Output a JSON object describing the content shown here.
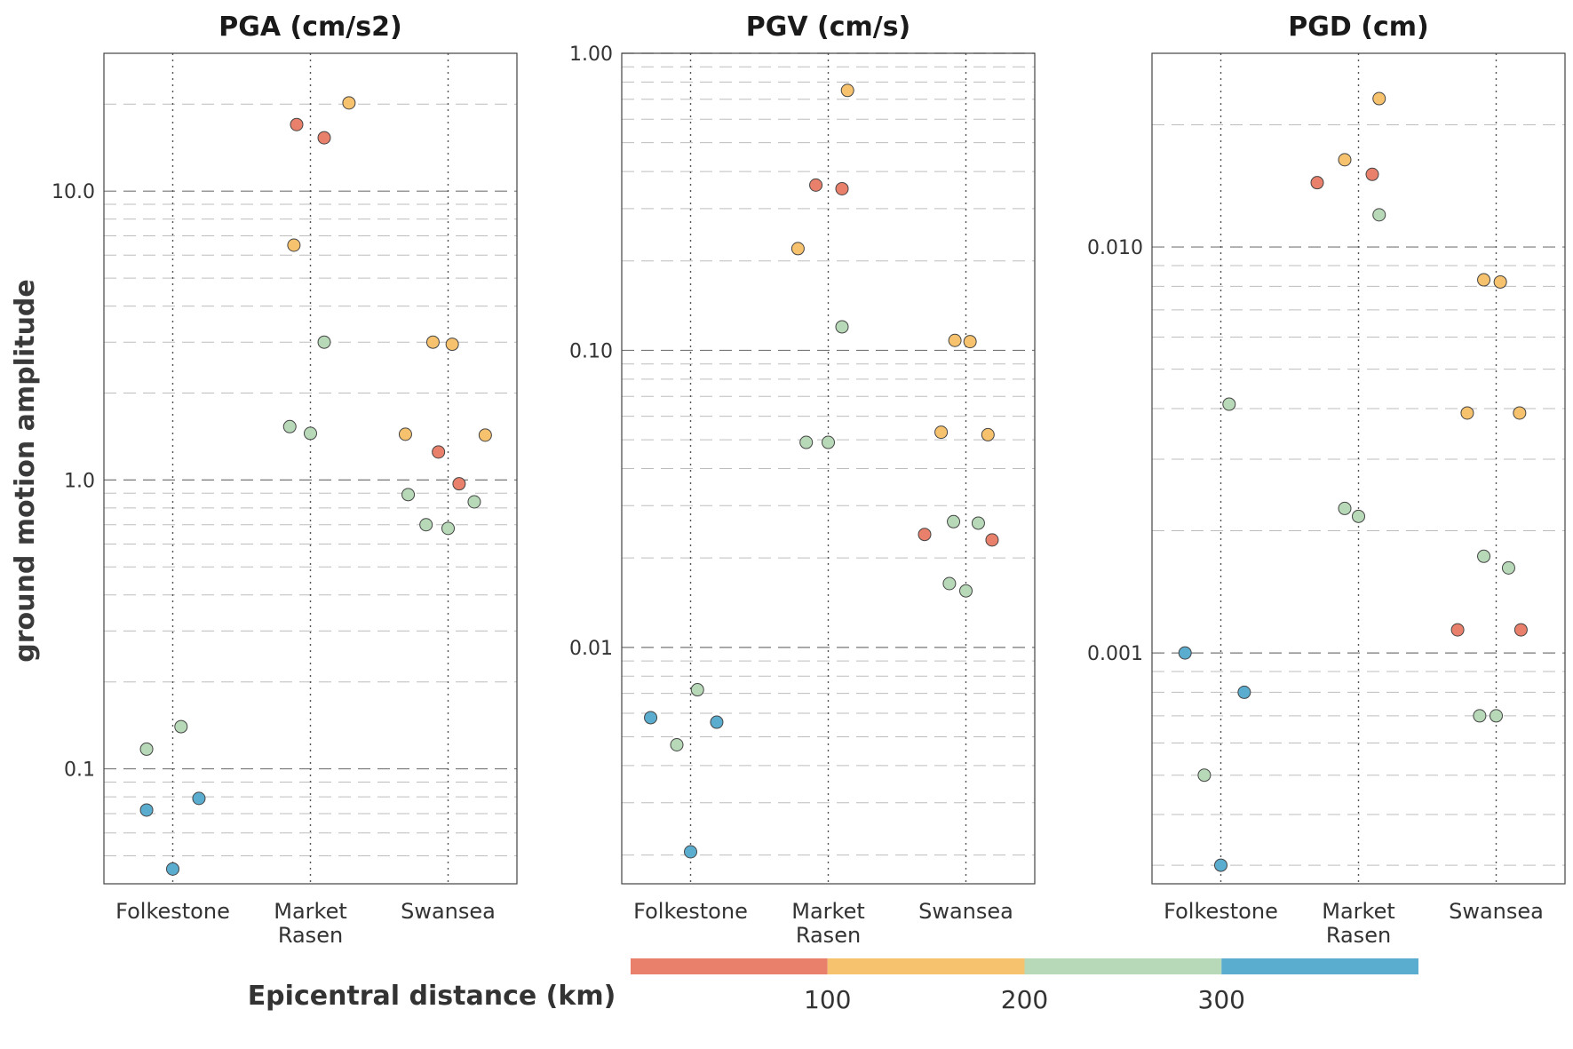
{
  "figure": {
    "ylabel": "ground motion amplitude",
    "colorbar": {
      "title": "Epicentral distance (km)",
      "ticks": [
        100,
        200,
        300
      ],
      "range": [
        0,
        400
      ],
      "bins": [
        {
          "from": 0,
          "to": 100,
          "color": "#e9806b"
        },
        {
          "from": 100,
          "to": 200,
          "color": "#f6c26e"
        },
        {
          "from": 200,
          "to": 300,
          "color": "#b7d9b8"
        },
        {
          "from": 300,
          "to": 400,
          "color": "#5badcf"
        }
      ]
    }
  },
  "chart_data": [
    {
      "type": "scatter",
      "title": "PGA (cm/s2)",
      "categories": [
        "Folkestone",
        "Market\nRasen",
        "Swansea"
      ],
      "yscale": "log",
      "ylim": [
        0.04,
        30
      ],
      "major_ticks": [
        0.1,
        1.0,
        10.0
      ],
      "major_tick_labels": [
        "0.1",
        "1.0",
        "10.0"
      ],
      "points": [
        {
          "category": "Folkestone",
          "offset": -0.19,
          "y": 0.117,
          "distance": 250
        },
        {
          "category": "Folkestone",
          "offset": 0.06,
          "y": 0.14,
          "distance": 250
        },
        {
          "category": "Folkestone",
          "offset": -0.19,
          "y": 0.072,
          "distance": 350
        },
        {
          "category": "Folkestone",
          "offset": 0.19,
          "y": 0.079,
          "distance": 350
        },
        {
          "category": "Folkestone",
          "offset": 0.0,
          "y": 0.045,
          "distance": 350
        },
        {
          "category": "Market\nRasen",
          "offset": -0.1,
          "y": 17.0,
          "distance": 50
        },
        {
          "category": "Market\nRasen",
          "offset": 0.1,
          "y": 15.3,
          "distance": 50
        },
        {
          "category": "Market\nRasen",
          "offset": 0.28,
          "y": 20.2,
          "distance": 150
        },
        {
          "category": "Market\nRasen",
          "offset": -0.12,
          "y": 6.5,
          "distance": 150
        },
        {
          "category": "Market\nRasen",
          "offset": 0.1,
          "y": 3.0,
          "distance": 250
        },
        {
          "category": "Market\nRasen",
          "offset": -0.15,
          "y": 1.53,
          "distance": 250
        },
        {
          "category": "Market\nRasen",
          "offset": 0.0,
          "y": 1.45,
          "distance": 250
        },
        {
          "category": "Swansea",
          "offset": -0.11,
          "y": 3.0,
          "distance": 150
        },
        {
          "category": "Swansea",
          "offset": 0.03,
          "y": 2.95,
          "distance": 150
        },
        {
          "category": "Swansea",
          "offset": -0.31,
          "y": 1.44,
          "distance": 150
        },
        {
          "category": "Swansea",
          "offset": 0.27,
          "y": 1.43,
          "distance": 150
        },
        {
          "category": "Swansea",
          "offset": -0.07,
          "y": 1.25,
          "distance": 50
        },
        {
          "category": "Swansea",
          "offset": 0.08,
          "y": 0.97,
          "distance": 50
        },
        {
          "category": "Swansea",
          "offset": -0.29,
          "y": 0.89,
          "distance": 250
        },
        {
          "category": "Swansea",
          "offset": 0.19,
          "y": 0.84,
          "distance": 250
        },
        {
          "category": "Swansea",
          "offset": -0.16,
          "y": 0.7,
          "distance": 250
        },
        {
          "category": "Swansea",
          "offset": 0.0,
          "y": 0.68,
          "distance": 250
        }
      ]
    },
    {
      "type": "scatter",
      "title": "PGV (cm/s)",
      "categories": [
        "Folkestone",
        "Market\nRasen",
        "Swansea"
      ],
      "yscale": "log",
      "ylim": [
        0.0016,
        1.0
      ],
      "major_ticks": [
        0.01,
        0.1,
        1.0
      ],
      "major_tick_labels": [
        "0.01",
        "0.10",
        "1.00"
      ],
      "points": [
        {
          "category": "Folkestone",
          "offset": 0.05,
          "y": 0.0072,
          "distance": 250
        },
        {
          "category": "Folkestone",
          "offset": -0.1,
          "y": 0.0047,
          "distance": 250
        },
        {
          "category": "Folkestone",
          "offset": -0.29,
          "y": 0.0058,
          "distance": 350
        },
        {
          "category": "Folkestone",
          "offset": 0.19,
          "y": 0.0056,
          "distance": 350
        },
        {
          "category": "Folkestone",
          "offset": 0.0,
          "y": 0.00205,
          "distance": 350
        },
        {
          "category": "Market\nRasen",
          "offset": 0.14,
          "y": 0.75,
          "distance": 150
        },
        {
          "category": "Market\nRasen",
          "offset": -0.09,
          "y": 0.36,
          "distance": 50
        },
        {
          "category": "Market\nRasen",
          "offset": 0.1,
          "y": 0.35,
          "distance": 50
        },
        {
          "category": "Market\nRasen",
          "offset": -0.22,
          "y": 0.22,
          "distance": 150
        },
        {
          "category": "Market\nRasen",
          "offset": 0.1,
          "y": 0.12,
          "distance": 250
        },
        {
          "category": "Market\nRasen",
          "offset": -0.16,
          "y": 0.049,
          "distance": 250
        },
        {
          "category": "Market\nRasen",
          "offset": 0.0,
          "y": 0.049,
          "distance": 250
        },
        {
          "category": "Swansea",
          "offset": -0.08,
          "y": 0.108,
          "distance": 150
        },
        {
          "category": "Swansea",
          "offset": 0.03,
          "y": 0.107,
          "distance": 150
        },
        {
          "category": "Swansea",
          "offset": -0.18,
          "y": 0.053,
          "distance": 150
        },
        {
          "category": "Swansea",
          "offset": 0.16,
          "y": 0.052,
          "distance": 150
        },
        {
          "category": "Swansea",
          "offset": -0.3,
          "y": 0.024,
          "distance": 50
        },
        {
          "category": "Swansea",
          "offset": 0.19,
          "y": 0.023,
          "distance": 50
        },
        {
          "category": "Swansea",
          "offset": -0.09,
          "y": 0.0265,
          "distance": 250
        },
        {
          "category": "Swansea",
          "offset": 0.09,
          "y": 0.0262,
          "distance": 250
        },
        {
          "category": "Swansea",
          "offset": -0.12,
          "y": 0.0164,
          "distance": 250
        },
        {
          "category": "Swansea",
          "offset": 0.0,
          "y": 0.0155,
          "distance": 250
        }
      ]
    },
    {
      "type": "scatter",
      "title": "PGD (cm)",
      "categories": [
        "Folkestone",
        "Market\nRasen",
        "Swansea"
      ],
      "yscale": "log",
      "ylim": [
        0.00027,
        0.03
      ],
      "major_ticks": [
        0.001,
        0.01
      ],
      "major_tick_labels": [
        "0.001",
        "0.010"
      ],
      "points": [
        {
          "category": "Folkestone",
          "offset": 0.06,
          "y": 0.0041,
          "distance": 250
        },
        {
          "category": "Folkestone",
          "offset": -0.26,
          "y": 0.001,
          "distance": 350
        },
        {
          "category": "Folkestone",
          "offset": 0.17,
          "y": 0.0008,
          "distance": 350
        },
        {
          "category": "Folkestone",
          "offset": -0.12,
          "y": 0.0005,
          "distance": 250
        },
        {
          "category": "Folkestone",
          "offset": 0.0,
          "y": 0.0003,
          "distance": 350
        },
        {
          "category": "Market\nRasen",
          "offset": 0.15,
          "y": 0.0232,
          "distance": 150
        },
        {
          "category": "Market\nRasen",
          "offset": -0.1,
          "y": 0.0164,
          "distance": 150
        },
        {
          "category": "Market\nRasen",
          "offset": -0.3,
          "y": 0.0144,
          "distance": 50
        },
        {
          "category": "Market\nRasen",
          "offset": 0.1,
          "y": 0.0151,
          "distance": 50
        },
        {
          "category": "Market\nRasen",
          "offset": 0.15,
          "y": 0.012,
          "distance": 250
        },
        {
          "category": "Market\nRasen",
          "offset": -0.1,
          "y": 0.00227,
          "distance": 250
        },
        {
          "category": "Market\nRasen",
          "offset": 0.0,
          "y": 0.00217,
          "distance": 250
        },
        {
          "category": "Swansea",
          "offset": -0.09,
          "y": 0.0083,
          "distance": 150
        },
        {
          "category": "Swansea",
          "offset": 0.03,
          "y": 0.0082,
          "distance": 150
        },
        {
          "category": "Swansea",
          "offset": -0.21,
          "y": 0.0039,
          "distance": 150
        },
        {
          "category": "Swansea",
          "offset": 0.17,
          "y": 0.0039,
          "distance": 150
        },
        {
          "category": "Swansea",
          "offset": -0.09,
          "y": 0.00173,
          "distance": 250
        },
        {
          "category": "Swansea",
          "offset": 0.09,
          "y": 0.00162,
          "distance": 250
        },
        {
          "category": "Swansea",
          "offset": -0.28,
          "y": 0.00114,
          "distance": 50
        },
        {
          "category": "Swansea",
          "offset": 0.18,
          "y": 0.00114,
          "distance": 50
        },
        {
          "category": "Swansea",
          "offset": -0.12,
          "y": 0.0007,
          "distance": 250
        },
        {
          "category": "Swansea",
          "offset": 0.0,
          "y": 0.0007,
          "distance": 250
        }
      ]
    }
  ]
}
